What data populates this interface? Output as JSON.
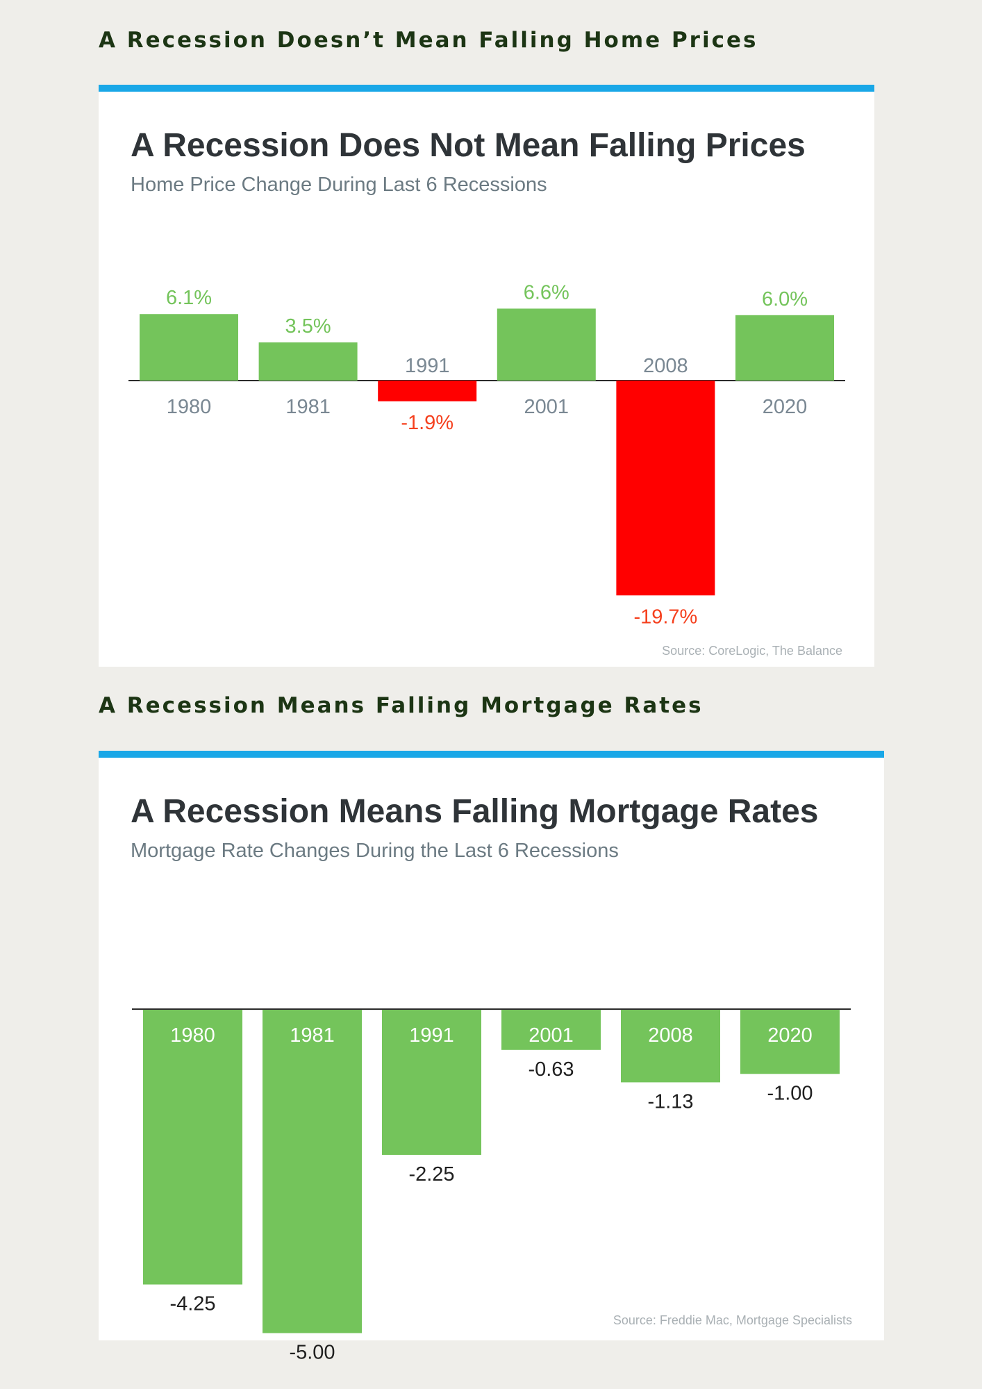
{
  "headings": {
    "top": "A Recession Doesn’t Mean Falling Home Prices",
    "bottom": "A Recession Means Falling Mortgage Rates"
  },
  "colors": {
    "accent_bar": "#19a7e7",
    "positive": "#74c45b",
    "negative": "#ff0000",
    "negative_label": "#f5401e",
    "category_label": "#7a8893",
    "heading_text": "#1c3514"
  },
  "chart_data": [
    {
      "type": "bar",
      "title": "A Recession Does Not Mean Falling Prices",
      "subtitle": "Home Price Change During Last 6 Recessions",
      "source": "Source: CoreLogic, The Balance",
      "categories": [
        "1980",
        "1981",
        "1991",
        "2001",
        "2008",
        "2020"
      ],
      "values": [
        6.1,
        3.5,
        -1.9,
        6.6,
        -19.7,
        6.0
      ],
      "value_labels": [
        "6.1%",
        "3.5%",
        "-1.9%",
        "6.6%",
        "-19.7%",
        "6.0%"
      ],
      "xlabel": "",
      "ylabel": "",
      "grid": false
    },
    {
      "type": "bar",
      "title": "A Recession Means Falling Mortgage Rates",
      "subtitle": "Mortgage Rate Changes During the Last 6 Recessions",
      "source": "Source: Freddie Mac, Mortgage Specialists",
      "categories": [
        "1980",
        "1981",
        "1991",
        "2001",
        "2008",
        "2020"
      ],
      "values": [
        -4.25,
        -5.0,
        -2.25,
        -0.63,
        -1.13,
        -1.0
      ],
      "value_labels": [
        "-4.25",
        "-5.00",
        "-2.25",
        "-0.63",
        "-1.13",
        "-1.00"
      ],
      "xlabel": "",
      "ylabel": "",
      "grid": false
    }
  ]
}
